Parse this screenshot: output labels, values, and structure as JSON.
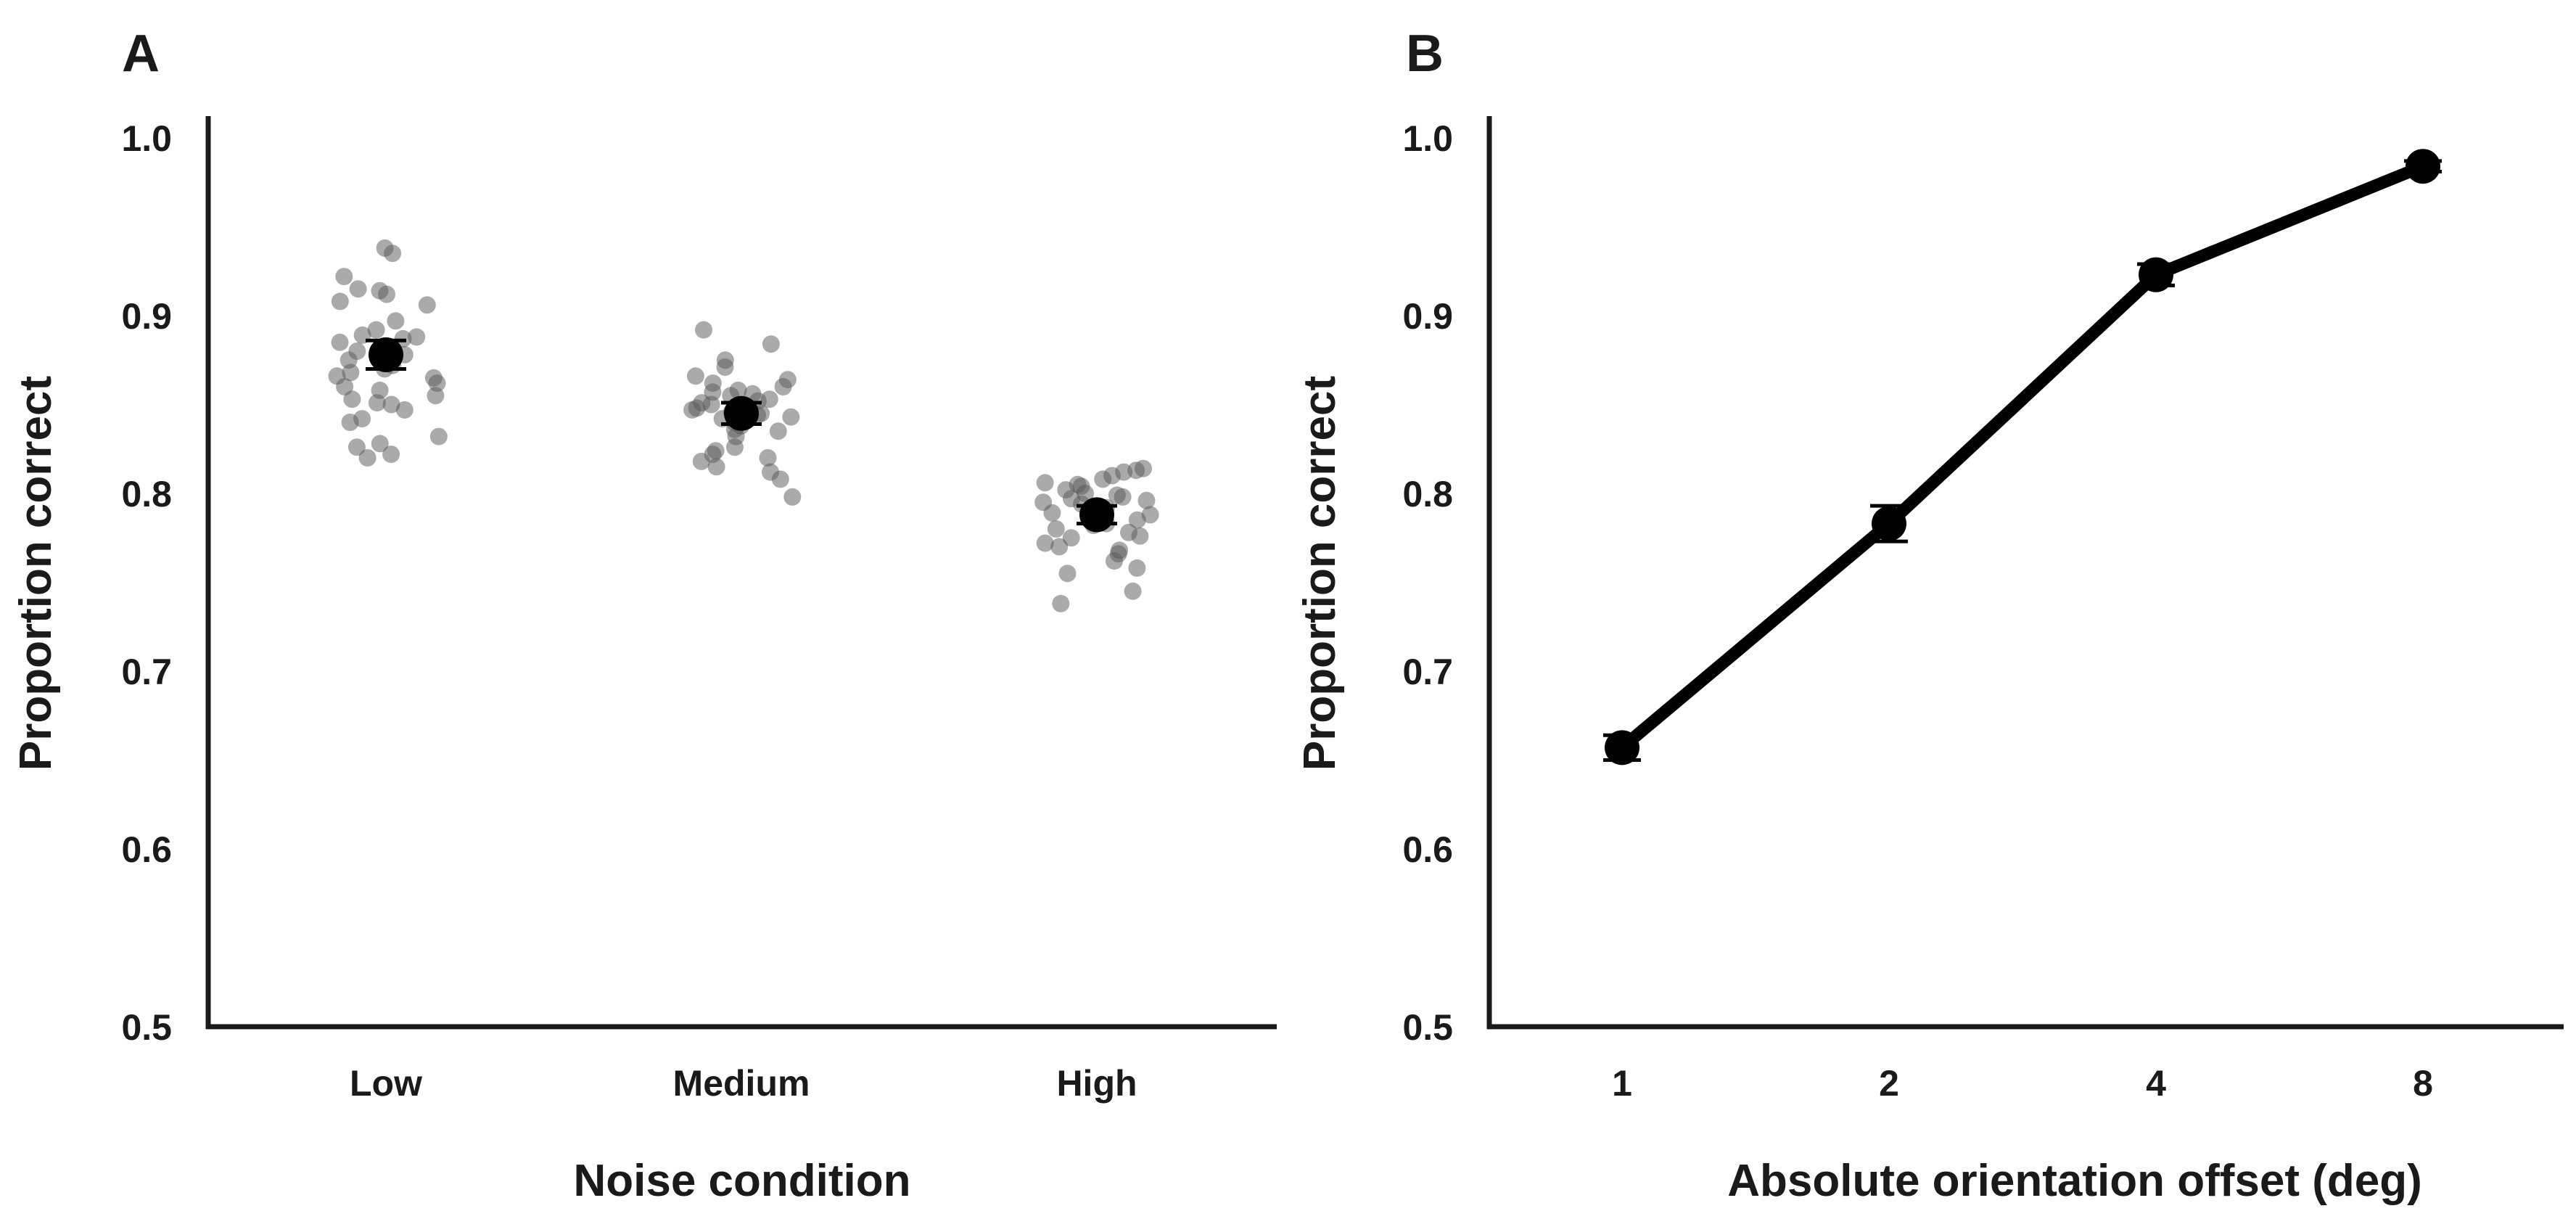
{
  "panels": {
    "a": {
      "letter": "A"
    },
    "b": {
      "letter": "B"
    }
  },
  "chart_data": [
    {
      "type": "scatter",
      "panel": "A",
      "xlabel": "Noise condition",
      "ylabel": "Proportion correct",
      "categories": [
        "Low",
        "Medium",
        "High"
      ],
      "ylim": [
        0.5,
        1.0
      ],
      "yticks": [
        "0.5",
        "0.6",
        "0.7",
        "0.8",
        "0.9",
        "1.0"
      ],
      "grid": false,
      "means": [
        0.878,
        0.845,
        0.788
      ],
      "errors": [
        0.008,
        0.006,
        0.005
      ],
      "points": [
        [
          0.938,
          0.935,
          0.922,
          0.915,
          0.914,
          0.912,
          0.908,
          0.906,
          0.897,
          0.892,
          0.889,
          0.888,
          0.887,
          0.885,
          0.882,
          0.88,
          0.878,
          0.875,
          0.872,
          0.87,
          0.868,
          0.866,
          0.865,
          0.862,
          0.86,
          0.858,
          0.855,
          0.853,
          0.851,
          0.85,
          0.847,
          0.842,
          0.84,
          0.832,
          0.828,
          0.826,
          0.822,
          0.82
        ],
        [
          0.892,
          0.884,
          0.875,
          0.871,
          0.866,
          0.864,
          0.862,
          0.86,
          0.858,
          0.857,
          0.856,
          0.855,
          0.853,
          0.852,
          0.851,
          0.85,
          0.849,
          0.848,
          0.847,
          0.846,
          0.845,
          0.844,
          0.843,
          0.842,
          0.84,
          0.838,
          0.836,
          0.835,
          0.832,
          0.826,
          0.824,
          0.822,
          0.82,
          0.818,
          0.815,
          0.812,
          0.808,
          0.798
        ],
        [
          0.814,
          0.813,
          0.812,
          0.81,
          0.808,
          0.806,
          0.805,
          0.804,
          0.802,
          0.8,
          0.799,
          0.798,
          0.797,
          0.796,
          0.795,
          0.794,
          0.792,
          0.79,
          0.789,
          0.788,
          0.786,
          0.785,
          0.783,
          0.782,
          0.78,
          0.778,
          0.776,
          0.775,
          0.772,
          0.77,
          0.768,
          0.766,
          0.762,
          0.758,
          0.755,
          0.745,
          0.738
        ]
      ]
    },
    {
      "type": "line",
      "panel": "B",
      "xlabel": "Absolute orientation offset (deg)",
      "ylabel": "Proportion correct",
      "categories": [
        "1",
        "2",
        "4",
        "8"
      ],
      "ylim": [
        0.5,
        1.0
      ],
      "yticks": [
        "0.5",
        "0.6",
        "0.7",
        "0.8",
        "0.9",
        "1.0"
      ],
      "grid": false,
      "values": [
        0.657,
        0.783,
        0.923,
        0.984
      ],
      "errors": [
        0.007,
        0.01,
        0.006,
        0.003
      ]
    }
  ]
}
